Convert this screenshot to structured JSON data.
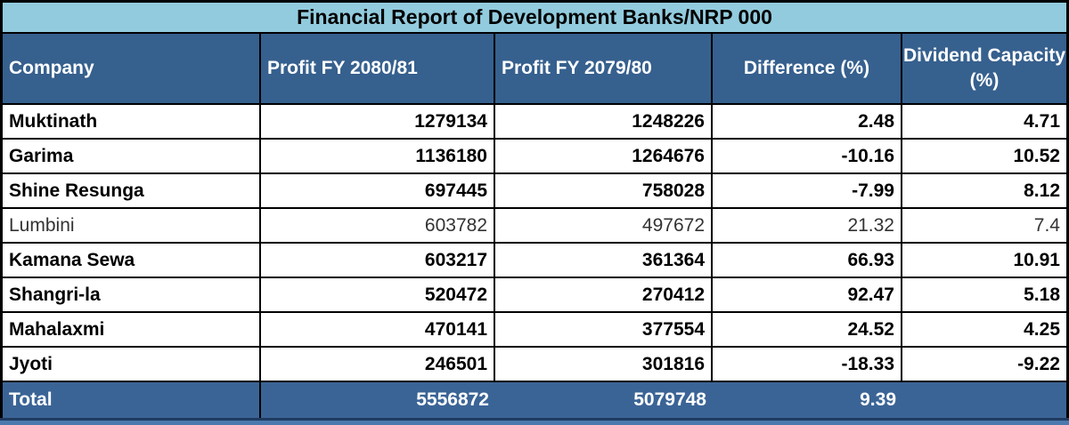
{
  "table": {
    "title": "Financial Report of Development Banks/NRP 000",
    "headers": {
      "company": "Company",
      "p1": "Profit FY 2080/81",
      "p2": "Profit FY 2079/80",
      "d": "Difference (%)",
      "dv": "Dividend Capacity (%)"
    },
    "rows": [
      {
        "c": "Muktinath",
        "p1": "1279134",
        "p2": "1248226",
        "d": "2.48",
        "dv": "4.71",
        "bold": true
      },
      {
        "c": "Garima",
        "p1": "1136180",
        "p2": "1264676",
        "d": "-10.16",
        "dv": "10.52",
        "bold": true
      },
      {
        "c": "Shine Resunga",
        "p1": "697445",
        "p2": "758028",
        "d": "-7.99",
        "dv": "8.12",
        "bold": true
      },
      {
        "c": "Lumbini",
        "p1": "603782",
        "p2": "497672",
        "d": "21.32",
        "dv": "7.4",
        "bold": false
      },
      {
        "c": "Kamana Sewa",
        "p1": "603217",
        "p2": "361364",
        "d": "66.93",
        "dv": "10.91",
        "bold": true
      },
      {
        "c": "Shangri-la",
        "p1": "520472",
        "p2": "270412",
        "d": "92.47",
        "dv": "5.18",
        "bold": true
      },
      {
        "c": "Mahalaxmi",
        "p1": "470141",
        "p2": "377554",
        "d": "24.52",
        "dv": "4.25",
        "bold": true
      },
      {
        "c": "Jyoti",
        "p1": "246501",
        "p2": "301816",
        "d": "-18.33",
        "dv": "-9.22",
        "bold": true
      }
    ],
    "total": {
      "label": "Total",
      "p1": "5556872",
      "p2": "5079748",
      "d": "9.39",
      "dv": ""
    }
  },
  "chart_data": {
    "type": "table",
    "title": "Financial Report of Development Banks/NRP 000",
    "columns": [
      "Company",
      "Profit FY 2080/81",
      "Profit FY 2079/80",
      "Difference (%)",
      "Dividend Capacity (%)"
    ],
    "rows": [
      [
        "Muktinath",
        1279134,
        1248226,
        2.48,
        4.71
      ],
      [
        "Garima",
        1136180,
        1264676,
        -10.16,
        10.52
      ],
      [
        "Shine Resunga",
        697445,
        758028,
        -7.99,
        8.12
      ],
      [
        "Lumbini",
        603782,
        497672,
        21.32,
        7.4
      ],
      [
        "Kamana Sewa",
        603217,
        361364,
        66.93,
        10.91
      ],
      [
        "Shangri-la",
        520472,
        270412,
        92.47,
        5.18
      ],
      [
        "Mahalaxmi",
        470141,
        377554,
        24.52,
        4.25
      ],
      [
        "Jyoti",
        246501,
        301816,
        -18.33,
        -9.22
      ]
    ],
    "total_row": [
      "Total",
      5556872,
      5079748,
      9.39,
      null
    ],
    "units": "NRP 000"
  },
  "colors": {
    "title_bg": "#92CBDE",
    "header_bg": "#36608E",
    "header_text": "#FFFFFF",
    "row_bg": "#FFFFFF",
    "row_text": "#000000",
    "total_bg": "#3B6496",
    "total_text": "#FFFFFF",
    "border": "#000000",
    "bottom_strip": "#4B79AE",
    "bottom_line": "#1F3B60"
  }
}
